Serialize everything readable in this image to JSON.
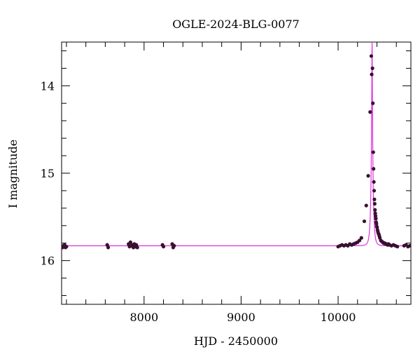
{
  "chart_data": {
    "type": "scatter",
    "title": "OGLE-2024-BLG-0077",
    "xlabel": "HJD - 2450000",
    "ylabel": "I magnitude",
    "xlim": [
      7150,
      10750
    ],
    "ylim": [
      16.5,
      13.5
    ],
    "y_inverted": true,
    "x_tick_labels": [
      {
        "value": 8000,
        "label": "8000"
      },
      {
        "value": 9000,
        "label": "9000"
      },
      {
        "value": 10000,
        "label": "10000"
      }
    ],
    "y_tick_labels": [
      {
        "value": 14,
        "label": "14"
      },
      {
        "value": 15,
        "label": "15"
      },
      {
        "value": 16,
        "label": "16"
      }
    ],
    "x_major_ticks": [
      7200,
      7400,
      7600,
      7800,
      8000,
      8200,
      8400,
      8600,
      8800,
      9000,
      9200,
      9400,
      9600,
      9800,
      10000,
      10200,
      10400,
      10600
    ],
    "y_major_ticks": [
      13.6,
      13.8,
      14.0,
      14.2,
      14.4,
      14.6,
      14.8,
      15.0,
      15.2,
      15.4,
      15.6,
      15.8,
      16.0,
      16.2,
      16.4
    ],
    "grid": false,
    "legend": "none",
    "colors": {
      "data": "#3a1030",
      "model": "#e030e0",
      "axes": "#000000"
    },
    "model": {
      "baseline_mag": 15.83,
      "peak_time": 10350,
      "peak_mag": 13.5,
      "tE": 20,
      "x_range": [
        7150,
        10750
      ]
    },
    "series": [
      {
        "x": [
          7160,
          7170,
          7180,
          7190,
          7200,
          7620,
          7630,
          7840,
          7850,
          7860,
          7870,
          7880,
          7890,
          7900,
          7910,
          7920,
          7930,
          8190,
          8200,
          8290,
          8300,
          8310,
          10000,
          10020,
          10040,
          10060,
          10080,
          10100,
          10120,
          10140,
          10160,
          10180,
          10200,
          10220,
          10240,
          10270,
          10290,
          10310,
          10330,
          10342,
          10346,
          10354,
          10358,
          10362,
          10365,
          10368,
          10371,
          10374,
          10377,
          10380,
          10383,
          10386,
          10389,
          10392,
          10395,
          10398,
          10402,
          10406,
          10410,
          10415,
          10420,
          10425,
          10430,
          10440,
          10450,
          10460,
          10470,
          10480,
          10490,
          10500,
          10510,
          10520,
          10530,
          10550,
          10570,
          10590,
          10610,
          10680,
          10700,
          10720,
          10740
        ],
        "y": [
          15.85,
          15.83,
          15.82,
          15.85,
          15.84,
          15.82,
          15.85,
          15.81,
          15.84,
          15.79,
          15.83,
          15.82,
          15.85,
          15.81,
          15.84,
          15.82,
          15.85,
          15.82,
          15.84,
          15.81,
          15.85,
          15.83,
          15.84,
          15.83,
          15.82,
          15.83,
          15.82,
          15.83,
          15.81,
          15.82,
          15.81,
          15.8,
          15.79,
          15.77,
          15.74,
          15.55,
          15.37,
          15.03,
          14.3,
          13.66,
          13.87,
          13.8,
          14.2,
          14.76,
          14.95,
          15.1,
          15.2,
          15.3,
          15.35,
          15.42,
          15.46,
          15.49,
          15.52,
          15.56,
          15.58,
          15.61,
          15.62,
          15.65,
          15.67,
          15.69,
          15.7,
          15.72,
          15.74,
          15.77,
          15.78,
          15.79,
          15.8,
          15.8,
          15.81,
          15.81,
          15.82,
          15.81,
          15.82,
          15.83,
          15.82,
          15.83,
          15.84,
          15.83,
          15.82,
          15.84,
          15.83
        ]
      }
    ]
  }
}
